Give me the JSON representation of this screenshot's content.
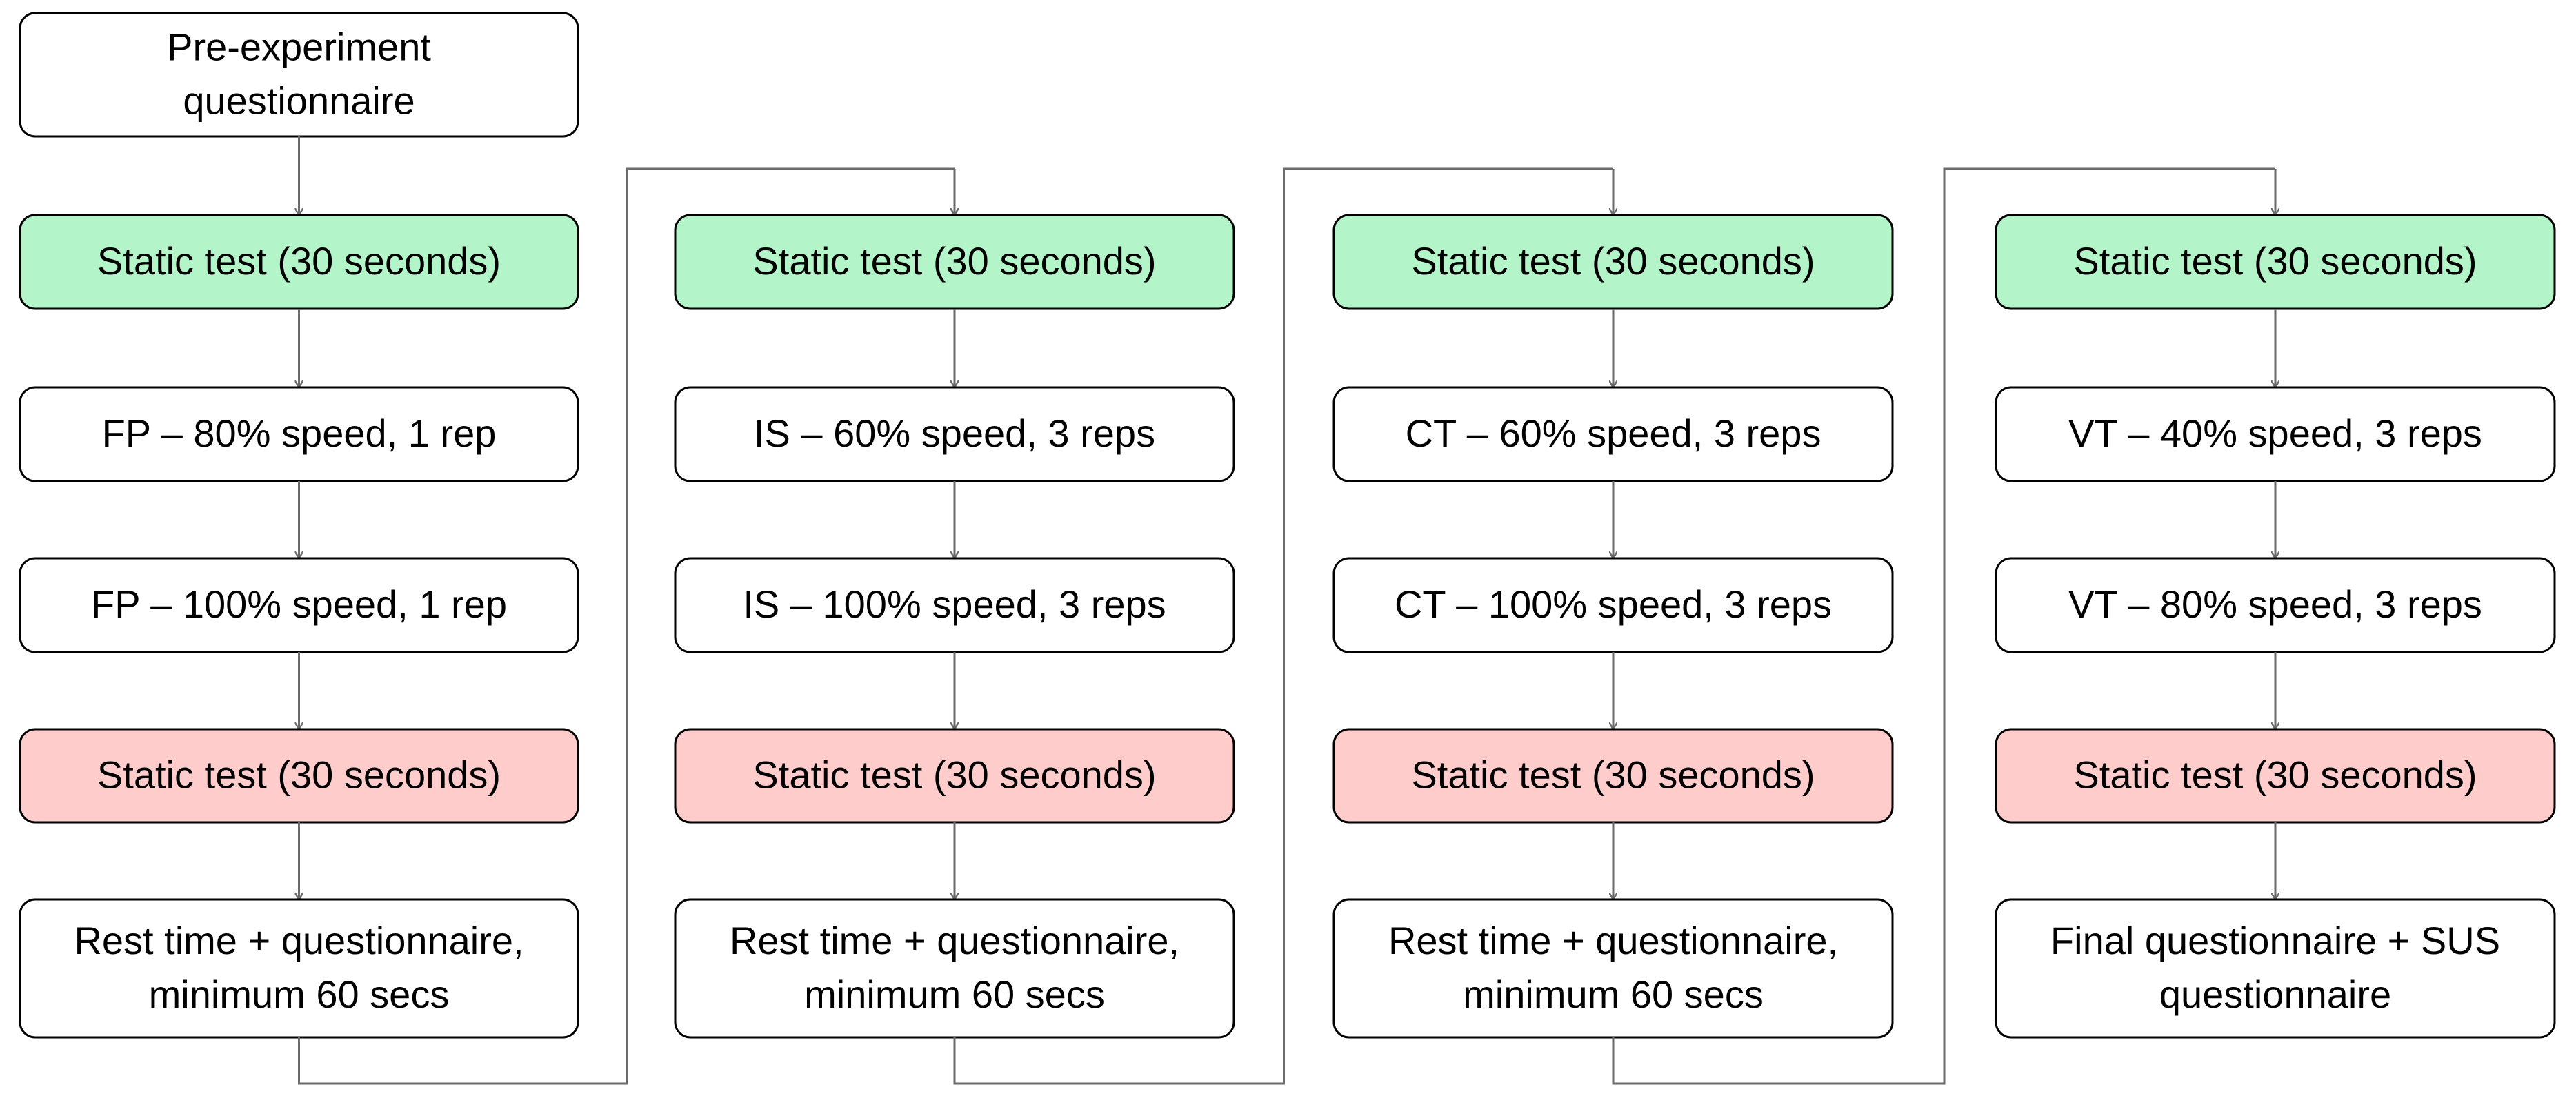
{
  "start": {
    "lines": [
      "Pre-experiment",
      "questionnaire"
    ],
    "fill": "#ffffff"
  },
  "columns": [
    {
      "steps": [
        {
          "lines": [
            "Static test (30 seconds)"
          ],
          "fill": "#b3f5c8"
        },
        {
          "lines": [
            "FP – 80% speed, 1 rep"
          ],
          "fill": "#ffffff"
        },
        {
          "lines": [
            "FP – 100% speed, 1 rep"
          ],
          "fill": "#ffffff"
        },
        {
          "lines": [
            "Static test (30 seconds)"
          ],
          "fill": "#ffcccc"
        },
        {
          "lines": [
            "Rest time + questionnaire,",
            "minimum 60 secs"
          ],
          "fill": "#ffffff"
        }
      ]
    },
    {
      "steps": [
        {
          "lines": [
            "Static test (30 seconds)"
          ],
          "fill": "#b3f5c8"
        },
        {
          "lines": [
            "IS – 60% speed, 3 reps"
          ],
          "fill": "#ffffff"
        },
        {
          "lines": [
            "IS – 100% speed, 3 reps"
          ],
          "fill": "#ffffff"
        },
        {
          "lines": [
            "Static test (30 seconds)"
          ],
          "fill": "#ffcccc"
        },
        {
          "lines": [
            "Rest time + questionnaire,",
            "minimum 60 secs"
          ],
          "fill": "#ffffff"
        }
      ]
    },
    {
      "steps": [
        {
          "lines": [
            "Static test (30 seconds)"
          ],
          "fill": "#b3f5c8"
        },
        {
          "lines": [
            "CT – 60% speed, 3 reps"
          ],
          "fill": "#ffffff"
        },
        {
          "lines": [
            "CT – 100% speed, 3 reps"
          ],
          "fill": "#ffffff"
        },
        {
          "lines": [
            "Static test (30 seconds)"
          ],
          "fill": "#ffcccc"
        },
        {
          "lines": [
            "Rest time + questionnaire,",
            "minimum 60 secs"
          ],
          "fill": "#ffffff"
        }
      ]
    },
    {
      "steps": [
        {
          "lines": [
            "Static test (30 seconds)"
          ],
          "fill": "#b3f5c8"
        },
        {
          "lines": [
            "VT – 40% speed, 3 reps"
          ],
          "fill": "#ffffff"
        },
        {
          "lines": [
            "VT – 80% speed, 3 reps"
          ],
          "fill": "#ffffff"
        },
        {
          "lines": [
            "Static test (30 seconds)"
          ],
          "fill": "#ffcccc"
        },
        {
          "lines": [
            "Final questionnaire + SUS",
            "questionnaire"
          ],
          "fill": "#ffffff"
        }
      ]
    }
  ]
}
